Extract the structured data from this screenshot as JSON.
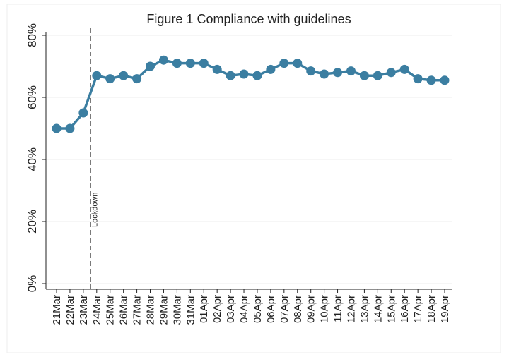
{
  "chart_data": {
    "type": "line",
    "title": "Figure 1 Compliance with guidelines",
    "categories": [
      "21Mar",
      "22Mar",
      "23Mar",
      "24Mar",
      "25Mar",
      "26Mar",
      "27Mar",
      "28Mar",
      "29Mar",
      "30Mar",
      "31Mar",
      "01Apr",
      "02Apr",
      "03Apr",
      "04Apr",
      "05Apr",
      "06Apr",
      "07Apr",
      "08Apr",
      "09Apr",
      "10Apr",
      "11Apr",
      "12Apr",
      "13Apr",
      "14Apr",
      "15Apr",
      "16Apr",
      "17Apr",
      "18Apr",
      "19Apr"
    ],
    "values": [
      50,
      50,
      55,
      67,
      66,
      67,
      66,
      70,
      72,
      71,
      71,
      71,
      69,
      67,
      67.5,
      67,
      69,
      71,
      71,
      68.5,
      67.5,
      68,
      68.5,
      67,
      67,
      68,
      69,
      66,
      65.5,
      65.5
    ],
    "color": "#3b7ea1",
    "ylim": [
      0,
      80
    ],
    "yticks": [
      {
        "value": 0,
        "label": "0%"
      },
      {
        "value": 20,
        "label": "20%"
      },
      {
        "value": 40,
        "label": "40%"
      },
      {
        "value": 60,
        "label": "60%"
      },
      {
        "value": 80,
        "label": "80%"
      }
    ],
    "grid": true,
    "annotation": "Lockdown"
  }
}
